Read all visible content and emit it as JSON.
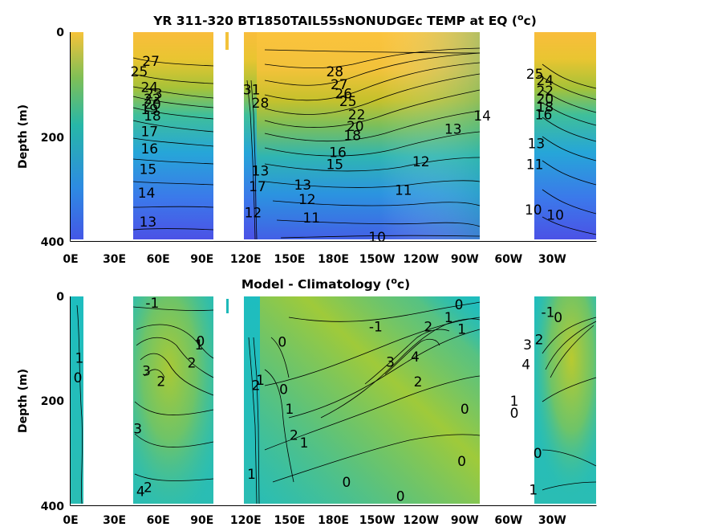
{
  "chart_data": [
    {
      "type": "heatmap",
      "title": "YR 311-320 BT1850TAIL55sNONUDGEc TEMP at EQ (°c)",
      "xlabel": "",
      "ylabel": "Depth (m)",
      "x_ticks": [
        "0E",
        "30E",
        "60E",
        "90E",
        "120E",
        "150E",
        "180E",
        "150W",
        "120W",
        "90W",
        "60W",
        "30W"
      ],
      "y_ticks": [
        "0",
        "200",
        "400"
      ],
      "ylim": [
        400,
        0
      ],
      "contour_labels": [
        {
          "text": "28",
          "lon": 181,
          "depth": 75
        },
        {
          "text": "27",
          "lon": 184,
          "depth": 100
        },
        {
          "text": "26",
          "lon": 187,
          "depth": 118
        },
        {
          "text": "25",
          "lon": 190,
          "depth": 132
        },
        {
          "text": "22",
          "lon": 196,
          "depth": 158
        },
        {
          "text": "20",
          "lon": 195,
          "depth": 180
        },
        {
          "text": "18",
          "lon": 193,
          "depth": 198
        },
        {
          "text": "16",
          "lon": 183,
          "depth": 230
        },
        {
          "text": "15",
          "lon": 181,
          "depth": 253
        },
        {
          "text": "14",
          "lon": 282,
          "depth": 160
        },
        {
          "text": "13",
          "lon": 262,
          "depth": 185
        },
        {
          "text": "12",
          "lon": 240,
          "depth": 248
        },
        {
          "text": "11",
          "lon": 228,
          "depth": 302
        },
        {
          "text": "10",
          "lon": 210,
          "depth": 392
        },
        {
          "text": "13",
          "lon": 159,
          "depth": 292
        },
        {
          "text": "12",
          "lon": 162,
          "depth": 320
        },
        {
          "text": "11",
          "lon": 165,
          "depth": 355
        },
        {
          "text": "13",
          "lon": 130,
          "depth": 265
        },
        {
          "text": "17",
          "lon": 128,
          "depth": 295
        },
        {
          "text": "12",
          "lon": 125,
          "depth": 345
        },
        {
          "text": "31",
          "lon": 124,
          "depth": 110
        },
        {
          "text": "28",
          "lon": 130,
          "depth": 135
        },
        {
          "text": "25",
          "lon": 47,
          "depth": 75
        },
        {
          "text": "27",
          "lon": 55,
          "depth": 55
        },
        {
          "text": "24",
          "lon": 54,
          "depth": 105
        },
        {
          "text": "23",
          "lon": 57,
          "depth": 118
        },
        {
          "text": "22",
          "lon": 56,
          "depth": 128
        },
        {
          "text": "20",
          "lon": 56,
          "depth": 138
        },
        {
          "text": "19",
          "lon": 54,
          "depth": 148
        },
        {
          "text": "18",
          "lon": 56,
          "depth": 160
        },
        {
          "text": "17",
          "lon": 54,
          "depth": 190
        },
        {
          "text": "16",
          "lon": 54,
          "depth": 223
        },
        {
          "text": "15",
          "lon": 53,
          "depth": 262
        },
        {
          "text": "14",
          "lon": 52,
          "depth": 308
        },
        {
          "text": "13",
          "lon": 53,
          "depth": 363
        },
        {
          "text": "25",
          "lon": 318,
          "depth": 80
        },
        {
          "text": "24",
          "lon": 325,
          "depth": 92
        },
        {
          "text": "22",
          "lon": 325,
          "depth": 112
        },
        {
          "text": "20",
          "lon": 325,
          "depth": 128
        },
        {
          "text": "18",
          "lon": 325,
          "depth": 143
        },
        {
          "text": "16",
          "lon": 324,
          "depth": 158
        },
        {
          "text": "13",
          "lon": 319,
          "depth": 213
        },
        {
          "text": "11",
          "lon": 318,
          "depth": 253
        },
        {
          "text": "10",
          "lon": 317,
          "depth": 340
        },
        {
          "text": "10",
          "lon": 332,
          "depth": 350
        }
      ]
    },
    {
      "type": "heatmap",
      "title": "Model - Climatology (°c)",
      "xlabel": "",
      "ylabel": "Depth (m)",
      "x_ticks": [
        "0E",
        "30E",
        "60E",
        "90E",
        "120E",
        "150E",
        "180E",
        "150W",
        "120W",
        "90W",
        "60W",
        "30W"
      ],
      "y_ticks": [
        "0",
        "200",
        "400"
      ],
      "ylim": [
        400,
        0
      ],
      "contour_labels": [
        {
          "text": "-1",
          "lon": 56,
          "depth": 12
        },
        {
          "text": "1",
          "lon": 6,
          "depth": 118
        },
        {
          "text": "0",
          "lon": 5,
          "depth": 155
        },
        {
          "text": "3",
          "lon": 52,
          "depth": 142
        },
        {
          "text": "2",
          "lon": 62,
          "depth": 162
        },
        {
          "text": "2",
          "lon": 83,
          "depth": 127
        },
        {
          "text": "1",
          "lon": 88,
          "depth": 92
        },
        {
          "text": "0",
          "lon": 89,
          "depth": 85
        },
        {
          "text": "3",
          "lon": 46,
          "depth": 253
        },
        {
          "text": "2",
          "lon": 53,
          "depth": 365
        },
        {
          "text": "4",
          "lon": 48,
          "depth": 373
        },
        {
          "text": "0",
          "lon": 145,
          "depth": 87
        },
        {
          "text": "2",
          "lon": 127,
          "depth": 170
        },
        {
          "text": "1",
          "lon": 130,
          "depth": 160
        },
        {
          "text": "0",
          "lon": 146,
          "depth": 178
        },
        {
          "text": "1",
          "lon": 150,
          "depth": 215
        },
        {
          "text": "2",
          "lon": 153,
          "depth": 265
        },
        {
          "text": "1",
          "lon": 160,
          "depth": 280
        },
        {
          "text": "1",
          "lon": 124,
          "depth": 340
        },
        {
          "text": "-1",
          "lon": 209,
          "depth": 58
        },
        {
          "text": "1",
          "lon": 259,
          "depth": 40
        },
        {
          "text": "0",
          "lon": 266,
          "depth": 15
        },
        {
          "text": "1",
          "lon": 268,
          "depth": 62
        },
        {
          "text": "2",
          "lon": 245,
          "depth": 58
        },
        {
          "text": "3",
          "lon": 219,
          "depth": 125
        },
        {
          "text": "4",
          "lon": 236,
          "depth": 115
        },
        {
          "text": "2",
          "lon": 238,
          "depth": 163
        },
        {
          "text": "0",
          "lon": 270,
          "depth": 215
        },
        {
          "text": "0",
          "lon": 268,
          "depth": 315
        },
        {
          "text": "0",
          "lon": 189,
          "depth": 355
        },
        {
          "text": "0",
          "lon": 226,
          "depth": 382
        },
        {
          "text": "-1",
          "lon": 327,
          "depth": 30
        },
        {
          "text": "0",
          "lon": 334,
          "depth": 40
        },
        {
          "text": "2",
          "lon": 321,
          "depth": 82
        },
        {
          "text": "3",
          "lon": 313,
          "depth": 92
        },
        {
          "text": "4",
          "lon": 312,
          "depth": 130
        },
        {
          "text": "1",
          "lon": 304,
          "depth": 200
        },
        {
          "text": "0",
          "lon": 304,
          "depth": 223
        },
        {
          "text": "0",
          "lon": 320,
          "depth": 300
        },
        {
          "text": "1",
          "lon": 317,
          "depth": 370
        }
      ]
    }
  ]
}
